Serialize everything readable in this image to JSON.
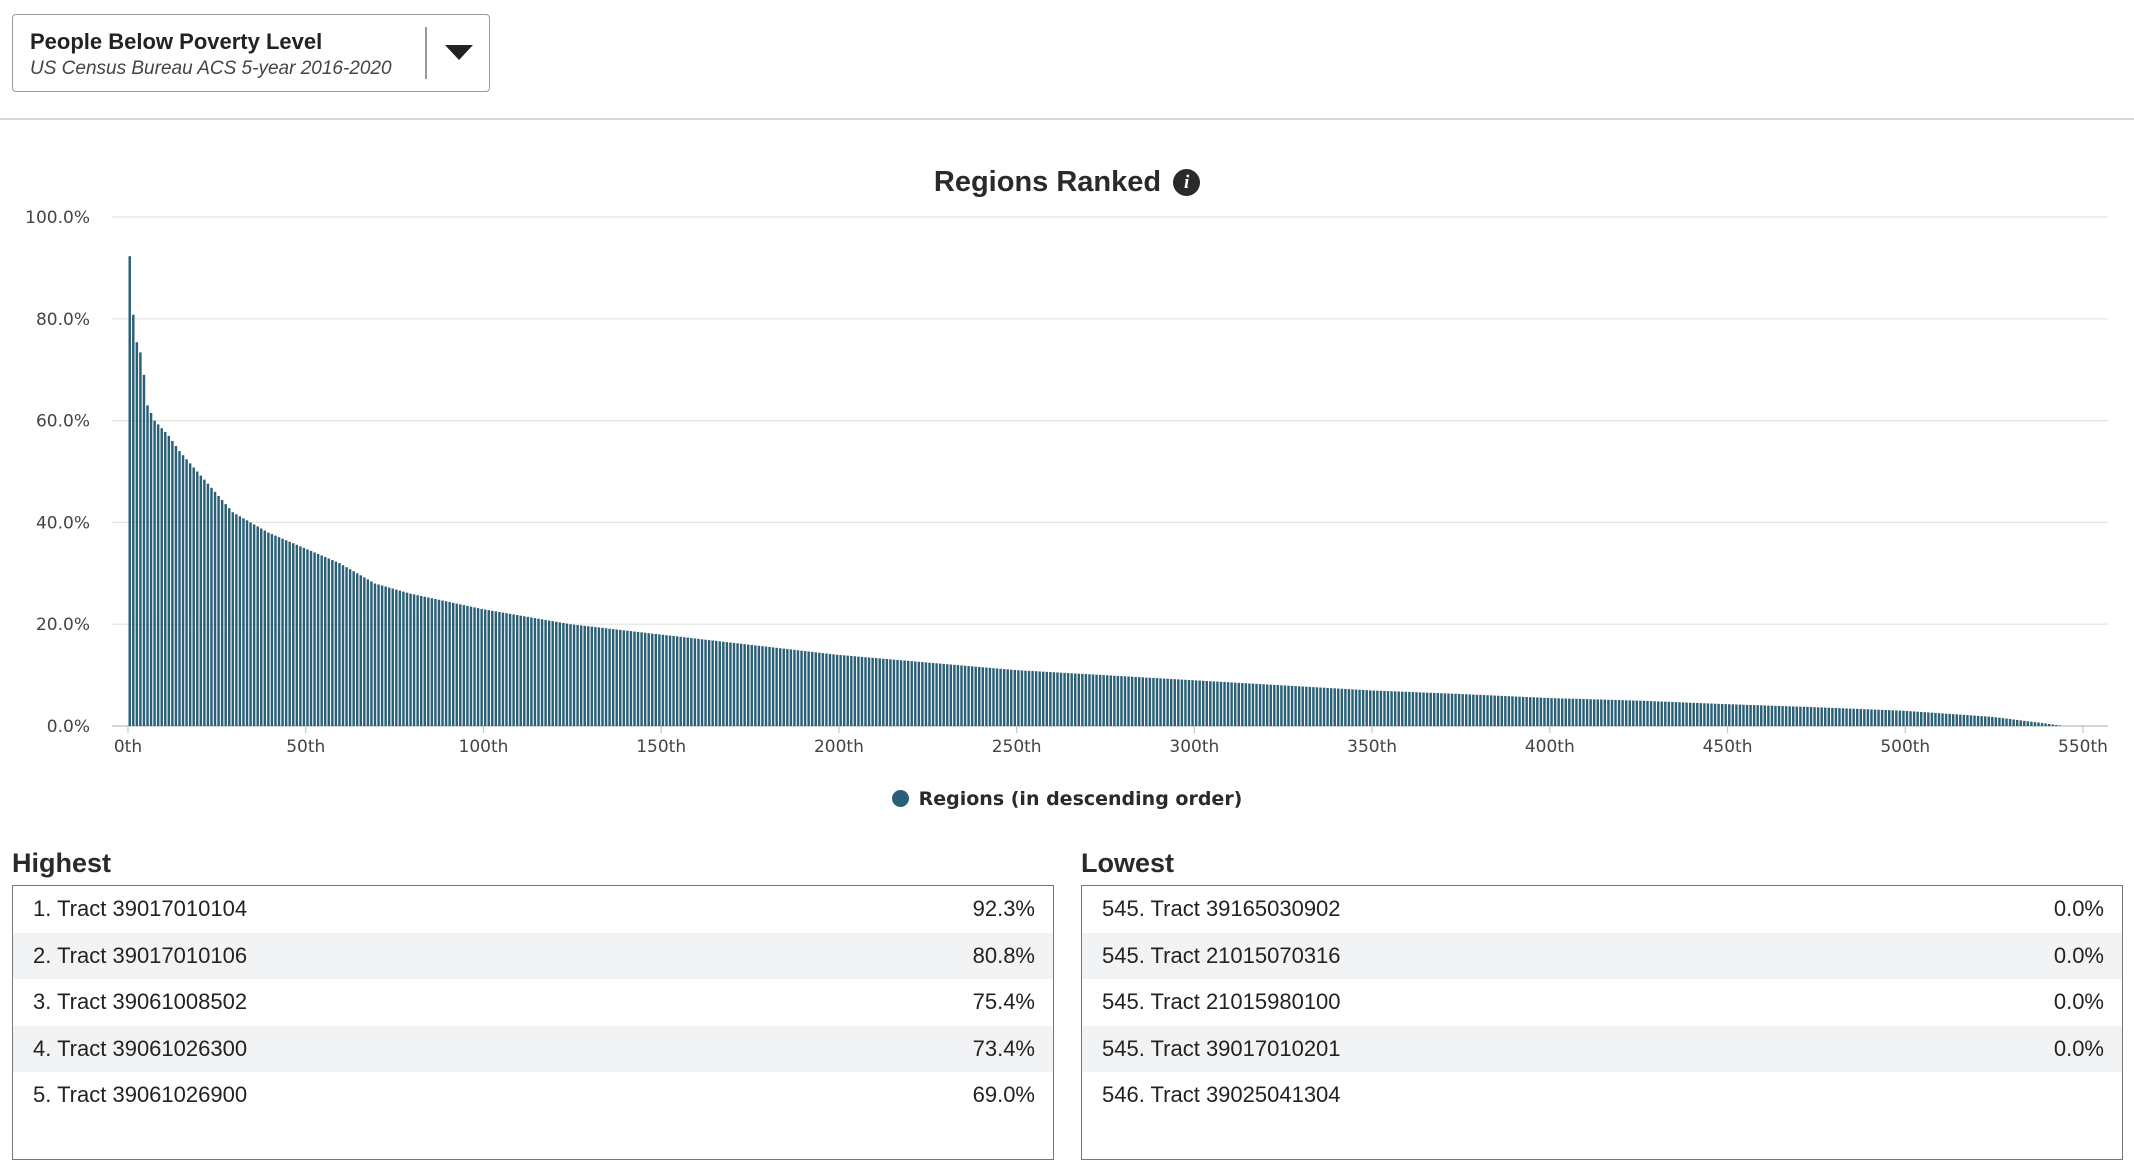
{
  "selector": {
    "title": "People Below Poverty Level",
    "subtitle": "US Census Bureau ACS 5-year 2016-2020"
  },
  "chart_title": "Regions Ranked",
  "legend_label": "Regions (in descending order)",
  "colors": {
    "bar": "#2a6077",
    "grid": "#e3e3e3",
    "axis": "#bfc8d0"
  },
  "chart_data": {
    "type": "bar",
    "ylim": [
      0,
      100
    ],
    "y_ticks": [
      "100.0%",
      "80.0%",
      "60.0%",
      "40.0%",
      "20.0%",
      "0.0%"
    ],
    "y_tick_values": [
      100,
      80,
      60,
      40,
      20,
      0
    ],
    "x_ticks": [
      "0th",
      "50th",
      "100th",
      "150th",
      "200th",
      "250th",
      "300th",
      "350th",
      "400th",
      "450th",
      "500th",
      "550th"
    ],
    "x_tick_values": [
      0,
      50,
      100,
      150,
      200,
      250,
      300,
      350,
      400,
      450,
      500,
      550
    ],
    "xlim": [
      0,
      550
    ],
    "n_regions": 546,
    "series": [
      {
        "name": "Regions (in descending order)",
        "values": "generated-by-script-from-anchors"
      }
    ],
    "value_anchors": [
      [
        1,
        92.3
      ],
      [
        2,
        80.8
      ],
      [
        3,
        75.4
      ],
      [
        4,
        73.4
      ],
      [
        5,
        69.0
      ],
      [
        6,
        63
      ],
      [
        8,
        60
      ],
      [
        12,
        57
      ],
      [
        15,
        54
      ],
      [
        20,
        50
      ],
      [
        25,
        46
      ],
      [
        30,
        42
      ],
      [
        40,
        38
      ],
      [
        50,
        35
      ],
      [
        60,
        32
      ],
      [
        70,
        28
      ],
      [
        80,
        26
      ],
      [
        100,
        23
      ],
      [
        125,
        20
      ],
      [
        150,
        18
      ],
      [
        175,
        16
      ],
      [
        200,
        14
      ],
      [
        225,
        12.5
      ],
      [
        250,
        11
      ],
      [
        275,
        10
      ],
      [
        300,
        9
      ],
      [
        325,
        8
      ],
      [
        350,
        7
      ],
      [
        375,
        6.3
      ],
      [
        400,
        5.5
      ],
      [
        425,
        5
      ],
      [
        450,
        4.3
      ],
      [
        475,
        3.7
      ],
      [
        500,
        3
      ],
      [
        525,
        1.8
      ],
      [
        540,
        0.5
      ],
      [
        545,
        0
      ],
      [
        546,
        0
      ]
    ],
    "grid": true,
    "legend_position": "bottom-center"
  },
  "highest": {
    "title": "Highest",
    "rows": [
      {
        "label": "1. Tract 39017010104",
        "value": "92.3%"
      },
      {
        "label": "2. Tract 39017010106",
        "value": "80.8%"
      },
      {
        "label": "3. Tract 39061008502",
        "value": "75.4%"
      },
      {
        "label": "4. Tract 39061026300",
        "value": "73.4%"
      },
      {
        "label": "5. Tract 39061026900",
        "value": "69.0%"
      }
    ]
  },
  "lowest": {
    "title": "Lowest",
    "rows": [
      {
        "label": "545. Tract 39165030902",
        "value": "0.0%"
      },
      {
        "label": "545. Tract 21015070316",
        "value": "0.0%"
      },
      {
        "label": "545. Tract 21015980100",
        "value": "0.0%"
      },
      {
        "label": "545. Tract 39017010201",
        "value": "0.0%"
      },
      {
        "label": "546. Tract 39025041304",
        "value": ""
      }
    ]
  }
}
